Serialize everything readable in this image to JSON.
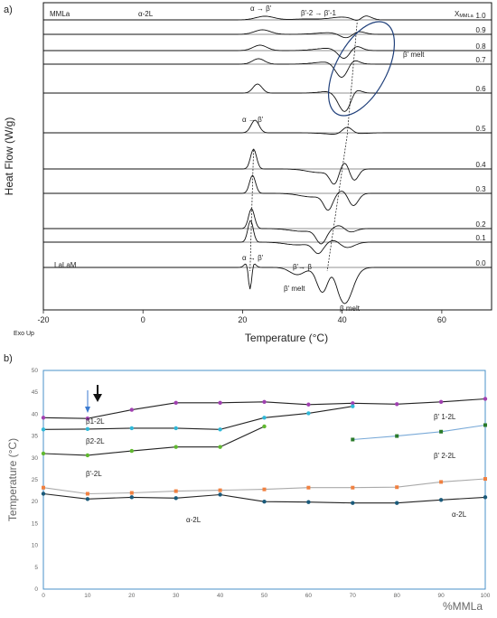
{
  "chart_data": [
    {
      "type": "line",
      "panel_label": "a)",
      "xlabel": "Temperature (°C)",
      "ylabel": "Heat Flow (W/g)",
      "corner_label": "Exo Up",
      "xlim": [
        -20,
        70
      ],
      "x_ticks": [
        -20,
        0,
        20,
        40,
        60
      ],
      "top_label": "MMLa",
      "bottom_label": "LaLaM",
      "composition_header": "X",
      "composition_header_sub": "MMLa",
      "compositions": [
        "1.0",
        "0.9",
        "0.8",
        "0.7",
        "0.6",
        "0.5",
        "0.4",
        "0.3",
        "0.2",
        "0.1",
        "0.0"
      ],
      "annotations": {
        "alpha_2L_top": "α-2L",
        "alpha_beta_prime_top": "α → β'",
        "beta2_to_beta1": "β'-2 → β'-1",
        "beta_prime_melt_top": "β' melt",
        "alpha_beta_prime_mid": "α → β'",
        "alpha_beta_prime_bottom": "α → β'",
        "beta_prime_beta_bottom": "β'→ β",
        "beta_prime_melt_bottom": "β' melt",
        "beta_melt": "β melt"
      }
    },
    {
      "type": "line",
      "panel_label": "b)",
      "xlabel": "%MMLa",
      "ylabel": "Temperature (°C)",
      "xlim": [
        0,
        100
      ],
      "ylim": [
        0,
        50
      ],
      "x_ticks": [
        0,
        10,
        20,
        30,
        40,
        50,
        60,
        70,
        80,
        90,
        100
      ],
      "y_ticks": [
        0,
        5,
        10,
        15,
        20,
        25,
        30,
        35,
        40,
        45,
        50
      ],
      "series": [
        {
          "color": "#a040b0",
          "line": "#222",
          "x": [
            0,
            10,
            20,
            30,
            40,
            50,
            60,
            70,
            80,
            90,
            100
          ],
          "values": [
            39.2,
            39.0,
            41.0,
            42.6,
            42.6,
            42.8,
            42.2,
            42.5,
            42.3,
            42.8,
            43.5
          ]
        },
        {
          "color": "#30b8d8",
          "line": "#222",
          "x": [
            0,
            10,
            20,
            30,
            40,
            50,
            60,
            70
          ],
          "values": [
            36.5,
            36.6,
            36.8,
            36.8,
            36.5,
            39.2,
            40.2,
            41.8
          ]
        },
        {
          "color": "#60b830",
          "line": "#222",
          "x": [
            0,
            10,
            20,
            30,
            40,
            50
          ],
          "values": [
            31.0,
            30.6,
            31.6,
            32.5,
            32.5,
            37.2
          ]
        },
        {
          "color": "#2a7a2a",
          "line": "#7aaad8",
          "x": [
            70,
            80,
            90,
            100
          ],
          "values": [
            34.2,
            35.0,
            36.0,
            37.5
          ]
        },
        {
          "color": "#f08040",
          "line": "#aaaaaa",
          "x": [
            0,
            10,
            20,
            30,
            40,
            50,
            60,
            70,
            80,
            90,
            100
          ],
          "values": [
            23.2,
            21.8,
            22.0,
            22.4,
            22.6,
            22.8,
            23.2,
            23.2,
            23.3,
            24.5,
            25.2
          ]
        },
        {
          "color": "#1a5a7a",
          "line": "#222",
          "x": [
            0,
            10,
            20,
            30,
            40,
            50,
            60,
            70,
            80,
            90,
            100
          ],
          "values": [
            21.8,
            20.6,
            21.0,
            20.8,
            21.6,
            20.0,
            19.9,
            19.7,
            19.7,
            20.4,
            21.0
          ]
        }
      ],
      "annotations": {
        "beta1_2L": "β1-2L",
        "beta2_2L": "β2-2L",
        "betap_2L": "β'-2L",
        "betap1_2L": "β' 1-2L",
        "betap2_2L": "β' 2-2L",
        "alpha_2L_left": "α-2L",
        "alpha_2L_right": "α-2L"
      }
    }
  ]
}
